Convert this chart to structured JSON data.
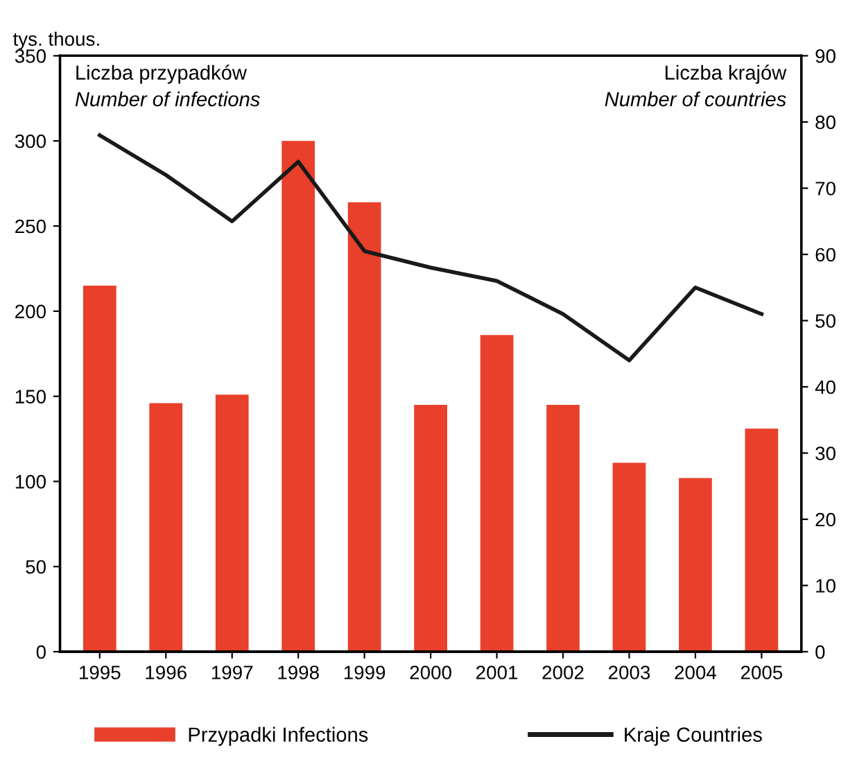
{
  "chart_data": {
    "type": "bar",
    "categories": [
      "1995",
      "1996",
      "1997",
      "1998",
      "1999",
      "2000",
      "2001",
      "2002",
      "2003",
      "2004",
      "2005"
    ],
    "ylabel": "Liczba przypadków\nNumber of infections",
    "y2label": "Liczba krajów\nNumber of countries",
    "annotations": [
      "tys. thous."
    ],
    "series": [
      {
        "name": "Przypadki Infections",
        "color": "#e8402a",
        "values": [
          215,
          146,
          151,
          300,
          264,
          145,
          186,
          145,
          111,
          102,
          131
        ]
      },
      {
        "name": "Kraje Countries",
        "type": "line",
        "axis": "y2",
        "color": "#1a1a1a",
        "values": [
          78,
          72,
          65,
          74,
          60.5,
          58,
          56,
          51,
          44,
          55,
          51
        ]
      }
    ],
    "ylim": [
      0,
      350
    ],
    "yticks": [
      0,
      50,
      100,
      150,
      200,
      250,
      300,
      350
    ],
    "y2lim": [
      0,
      90
    ],
    "y2ticks": [
      0,
      10,
      20,
      30,
      40,
      50,
      60,
      70,
      80,
      90
    ],
    "grid": false,
    "legend": "bottom"
  }
}
